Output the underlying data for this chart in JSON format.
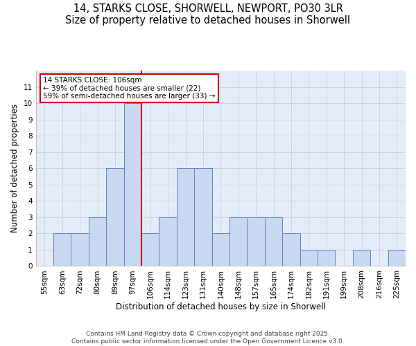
{
  "title_line1": "14, STARKS CLOSE, SHORWELL, NEWPORT, PO30 3LR",
  "title_line2": "Size of property relative to detached houses in Shorwell",
  "xlabel": "Distribution of detached houses by size in Shorwell",
  "ylabel": "Number of detached properties",
  "categories": [
    "55sqm",
    "63sqm",
    "72sqm",
    "80sqm",
    "89sqm",
    "97sqm",
    "106sqm",
    "114sqm",
    "123sqm",
    "131sqm",
    "140sqm",
    "148sqm",
    "157sqm",
    "165sqm",
    "174sqm",
    "182sqm",
    "191sqm",
    "199sqm",
    "208sqm",
    "216sqm",
    "225sqm"
  ],
  "values": [
    0,
    2,
    2,
    3,
    6,
    10,
    2,
    3,
    6,
    6,
    2,
    3,
    3,
    3,
    2,
    1,
    1,
    0,
    1,
    0,
    1
  ],
  "bar_color": "#c8d8f0",
  "bar_edge_color": "#6080c0",
  "reference_line_x": 5.5,
  "reference_line_color": "#cc0000",
  "annotation_line1": "14 STARKS CLOSE: 106sqm",
  "annotation_line2": "← 39% of detached houses are smaller (22)",
  "annotation_line3": "59% of semi-detached houses are larger (33) →",
  "annotation_box_color": "#ffffff",
  "annotation_box_edge_color": "#cc0000",
  "ylim": [
    0,
    12
  ],
  "yticks": [
    0,
    1,
    2,
    3,
    4,
    5,
    6,
    7,
    8,
    9,
    10,
    11
  ],
  "grid_color": "#c8d4e8",
  "grid_color_minor": "#dce4f0",
  "background_color": "#e4ecf8",
  "footer_line1": "Contains HM Land Registry data © Crown copyright and database right 2025.",
  "footer_line2": "Contains public sector information licensed under the Open Government Licence v3.0.",
  "title_fontsize": 10.5,
  "axis_label_fontsize": 8.5,
  "tick_fontsize": 7.5,
  "annotation_fontsize": 7.5,
  "footer_fontsize": 6.5
}
